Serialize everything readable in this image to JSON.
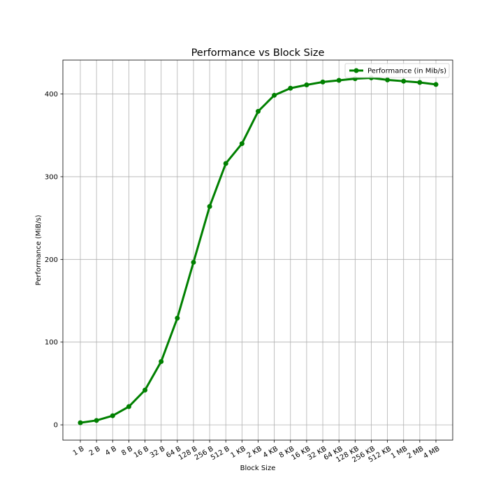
{
  "chart_data": {
    "type": "line",
    "title": "Performance vs Block Size",
    "xlabel": "Block Size",
    "ylabel": "Performance (MiB/s)",
    "categories": [
      "1 B",
      "2 B",
      "4 B",
      "8 B",
      "16 B",
      "32 B",
      "64 B",
      "128 B",
      "256 B",
      "512 B",
      "1 KB",
      "2 KB",
      "4 KB",
      "8 KB",
      "16 KB",
      "32 KB",
      "64 KB",
      "128 KB",
      "256 KB",
      "512 KB",
      "1 MB",
      "2 MB",
      "4 MB"
    ],
    "series": [
      {
        "name": "Performance (in Mib/s)",
        "color": "#008000",
        "marker": "circle",
        "values": [
          2.5,
          5.3,
          11.0,
          22.0,
          42.0,
          76.5,
          129.0,
          196.5,
          264.0,
          316.0,
          340.0,
          379.0,
          398.5,
          407.0,
          411.0,
          414.5,
          416.5,
          418.5,
          419.5,
          417.0,
          415.5,
          414.0,
          411.5
        ]
      }
    ],
    "yticks": [
      0,
      100,
      200,
      300,
      400
    ],
    "ylim": [
      -18.5,
      441
    ],
    "grid": true,
    "legend_position": "upper right",
    "xtick_rotation_deg": -30
  }
}
